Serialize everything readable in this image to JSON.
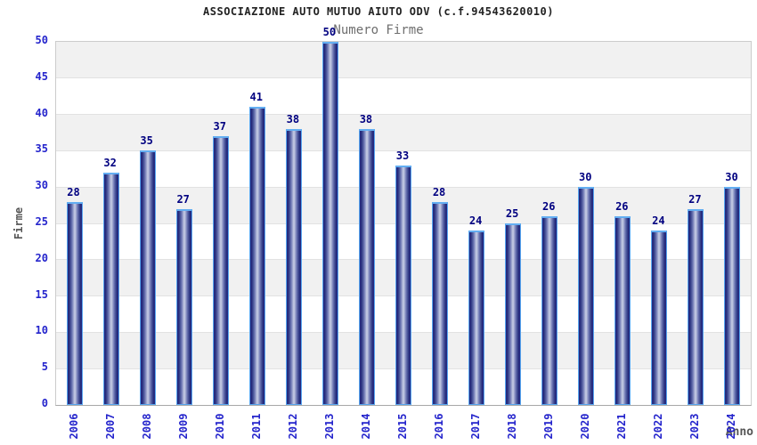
{
  "chart_data": {
    "type": "bar",
    "title": "ASSOCIAZIONE AUTO MUTUO AIUTO ODV (c.f.94543620010)",
    "subtitle": "Numero Firme",
    "xlabel": "Anno",
    "ylabel": "Firme",
    "categories": [
      "2006",
      "2007",
      "2008",
      "2009",
      "2010",
      "2011",
      "2012",
      "2013",
      "2014",
      "2015",
      "2016",
      "2017",
      "2018",
      "2019",
      "2020",
      "2021",
      "2022",
      "2023",
      "2024"
    ],
    "values": [
      28,
      32,
      35,
      27,
      37,
      41,
      38,
      50,
      38,
      33,
      28,
      24,
      25,
      26,
      30,
      26,
      24,
      27,
      30
    ],
    "ylim": [
      0,
      50
    ],
    "ytick_step": 5,
    "yticks": [
      0,
      5,
      10,
      15,
      20,
      25,
      30,
      35,
      40,
      45,
      50
    ],
    "grid": "horizontal-bands",
    "legend": null,
    "colors": {
      "bar_edge_dark": "#1f2478",
      "bar_center_light": "#c9cfe8",
      "bar_border": "#58a6f0",
      "band_fill": "#f1f1f1",
      "gridline": "#e2e2e2",
      "tick_text": "#2424cc",
      "value_text": "#000080",
      "axis_title_text": "#555555",
      "title_text": "#222222",
      "subtitle_text": "#6e6e6e",
      "plot_border": "#cccccc"
    }
  }
}
